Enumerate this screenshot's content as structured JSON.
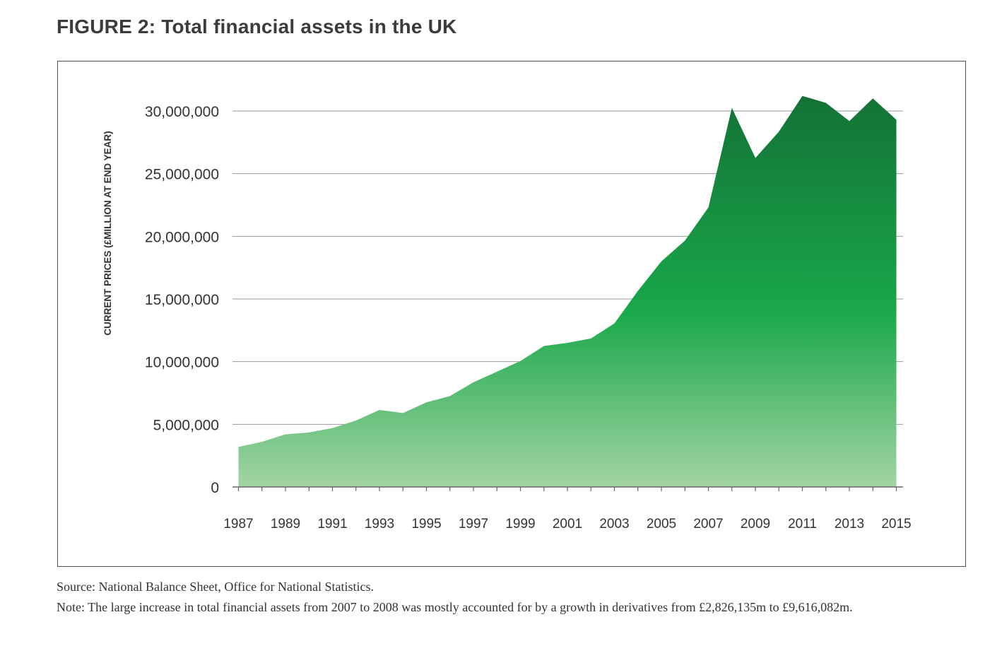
{
  "figure": {
    "title": "FIGURE 2: Total financial assets in the UK",
    "source": "Source: National Balance Sheet, Office for National Statistics.",
    "note": "Note: The large increase in total financial assets from 2007 to 2008 was mostly accounted for by a growth in derivatives from £2,826,135m to £9,616,082m."
  },
  "colors": {
    "fill_top": "#137236",
    "fill_mid": "#19a84a",
    "fill_bottom": "#a3d4a3",
    "grid": "#999999",
    "axis": "#666666"
  },
  "chart_data": {
    "type": "area",
    "title": "Total financial assets in the UK",
    "xlabel": "",
    "ylabel": "CURRENT PRICES (£MILLION AT END YEAR)",
    "ylim": [
      0,
      30000000
    ],
    "yticks": [
      0,
      5000000,
      10000000,
      15000000,
      20000000,
      25000000,
      30000000
    ],
    "ytick_labels": [
      "0",
      "5,000,000",
      "10,000,000",
      "15,000,000",
      "20,000,000",
      "25,000,000",
      "30,000,000"
    ],
    "xtick_labels": [
      "1987",
      "1989",
      "1991",
      "1993",
      "1995",
      "1997",
      "1999",
      "2001",
      "2003",
      "2005",
      "2007",
      "2009",
      "2011",
      "2013",
      "2015"
    ],
    "grid": true,
    "series": [
      {
        "name": "Total financial assets",
        "x": [
          1987,
          1988,
          1989,
          1990,
          1991,
          1992,
          1993,
          1994,
          1995,
          1996,
          1997,
          1998,
          1999,
          2000,
          2001,
          2002,
          2003,
          2004,
          2005,
          2006,
          2007,
          2008,
          2009,
          2010,
          2011,
          2012,
          2013,
          2014,
          2015
        ],
        "values": [
          3200000,
          3600000,
          4200000,
          4350000,
          4700000,
          5300000,
          6150000,
          5900000,
          6750000,
          7250000,
          8350000,
          9200000,
          10050000,
          11250000,
          11500000,
          11850000,
          13050000,
          15650000,
          18000000,
          19650000,
          22300000,
          30250000,
          26250000,
          28350000,
          31200000,
          30650000,
          29200000,
          31000000,
          29300000
        ]
      }
    ]
  }
}
